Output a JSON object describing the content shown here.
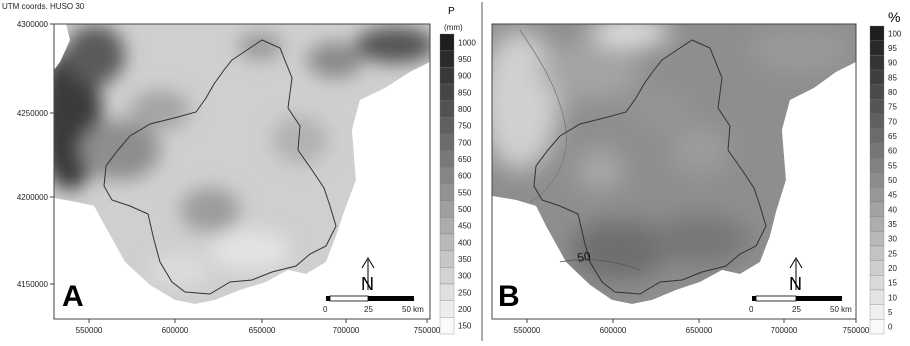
{
  "figure": {
    "coord_note": "UTM coords. HUSO 30",
    "colors": {
      "frame": "#333333",
      "border": "#333333",
      "land_light": "#d9d9d9",
      "land_dark": "#2a2a2a"
    }
  },
  "panels": [
    {
      "letter": "A",
      "x_ticks": [
        "550000",
        "600000",
        "650000",
        "700000",
        "750000"
      ],
      "y_ticks": [
        "4300000",
        "4250000",
        "4200000",
        "4150000"
      ],
      "legend": {
        "unit_top": "P",
        "unit_bottom": "(mm)",
        "levels": [
          "1000",
          "950",
          "900",
          "850",
          "800",
          "750",
          "700",
          "650",
          "600",
          "550",
          "500",
          "450",
          "400",
          "350",
          "300",
          "250",
          "200",
          "150"
        ]
      },
      "scale_bar": {
        "labels": [
          "0",
          "25",
          "50 km"
        ]
      },
      "north_label": "N"
    },
    {
      "letter": "B",
      "x_ticks": [
        "550000",
        "600000",
        "650000",
        "700000",
        "750000"
      ],
      "contour_label": "50",
      "legend": {
        "unit_top": "%",
        "levels": [
          "100",
          "95",
          "90",
          "85",
          "80",
          "75",
          "70",
          "65",
          "60",
          "55",
          "50",
          "45",
          "40",
          "35",
          "30",
          "25",
          "20",
          "15",
          "10",
          "5",
          "0"
        ]
      },
      "scale_bar": {
        "labels": [
          "0",
          "25",
          "50 km"
        ]
      },
      "north_label": "N"
    }
  ]
}
